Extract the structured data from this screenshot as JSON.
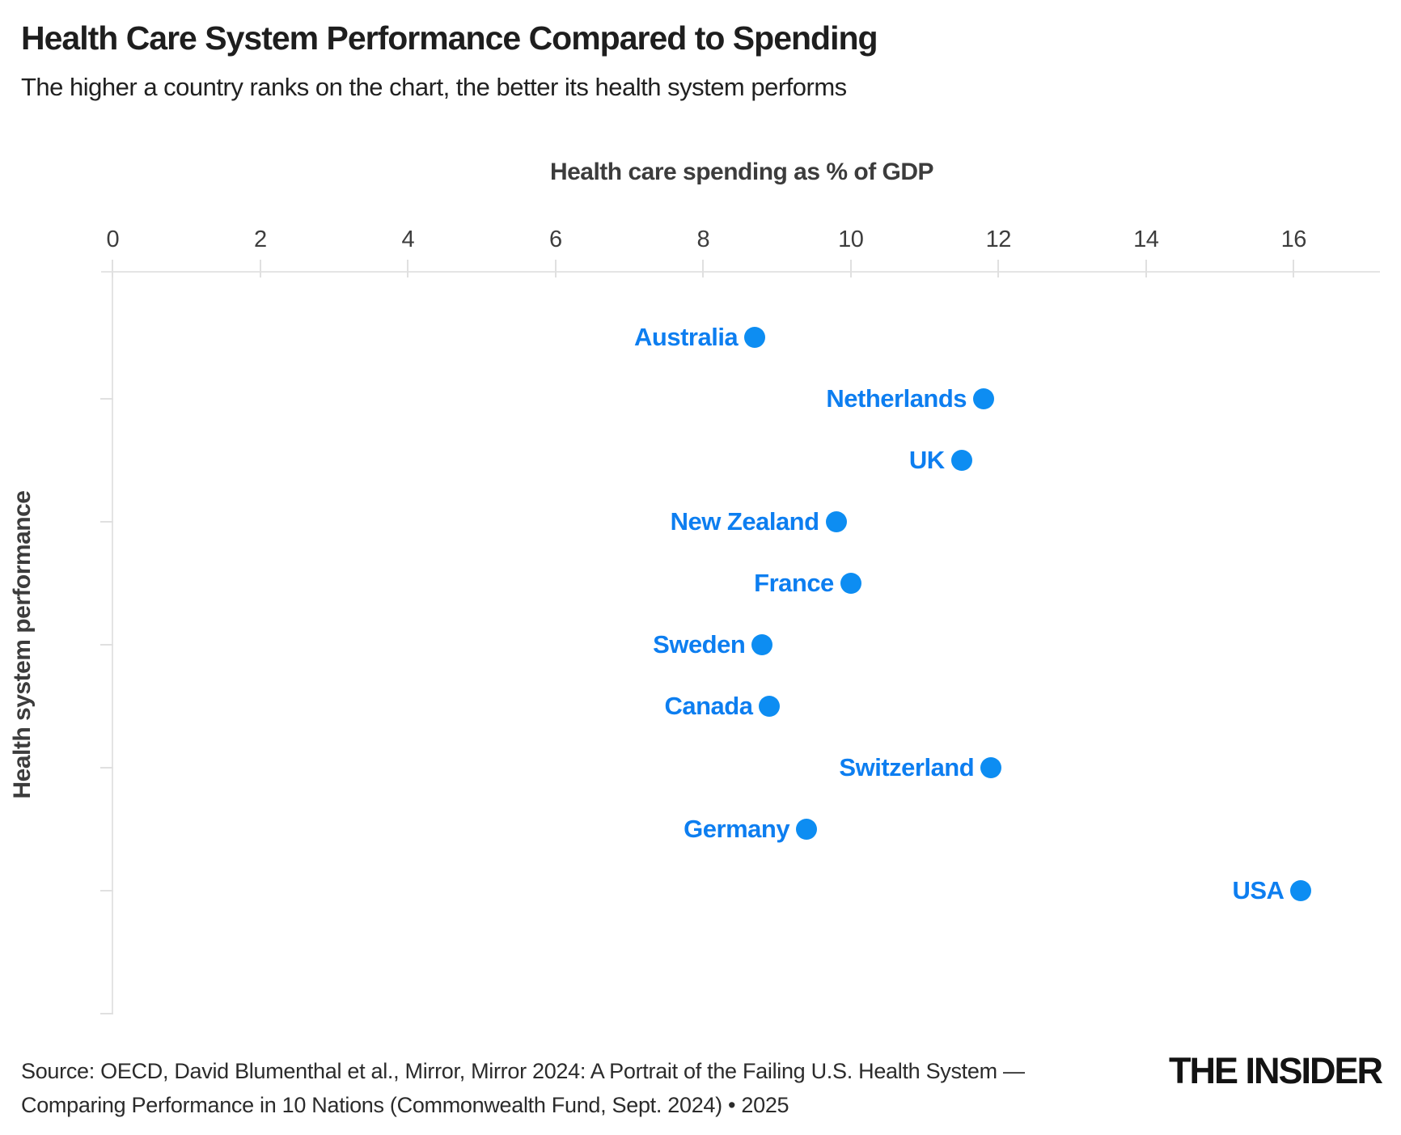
{
  "header": {
    "title": "Health Care System Performance Compared to Spending",
    "subtitle": "The higher a country ranks on the chart, the better its health system performs"
  },
  "chart_data": {
    "type": "scatter",
    "title": "Health Care System Performance Compared to Spending",
    "xlabel": "Health care spending as % of GDP",
    "ylabel": "Health system performance",
    "xlim": [
      0,
      17.2
    ],
    "x_ticks": [
      0,
      2,
      4,
      6,
      8,
      10,
      12,
      14,
      16
    ],
    "ylim_rank": [
      0,
      12
    ],
    "y_tick_ranks": [
      2,
      4,
      6,
      8,
      10,
      12
    ],
    "grid": false,
    "legend": false,
    "point_color": "#0d8df2",
    "label_color": "#0d7ef0",
    "points": [
      {
        "country": "Australia",
        "spending_pct_gdp": 8.7,
        "performance_rank": 1
      },
      {
        "country": "Netherlands",
        "spending_pct_gdp": 11.8,
        "performance_rank": 2
      },
      {
        "country": "UK",
        "spending_pct_gdp": 11.5,
        "performance_rank": 3
      },
      {
        "country": "New Zealand",
        "spending_pct_gdp": 9.8,
        "performance_rank": 4
      },
      {
        "country": "France",
        "spending_pct_gdp": 10.0,
        "performance_rank": 5
      },
      {
        "country": "Sweden",
        "spending_pct_gdp": 8.8,
        "performance_rank": 6
      },
      {
        "country": "Canada",
        "spending_pct_gdp": 8.9,
        "performance_rank": 7
      },
      {
        "country": "Switzerland",
        "spending_pct_gdp": 11.9,
        "performance_rank": 8
      },
      {
        "country": "Germany",
        "spending_pct_gdp": 9.4,
        "performance_rank": 9
      },
      {
        "country": "USA",
        "spending_pct_gdp": 16.1,
        "performance_rank": 10
      }
    ]
  },
  "footer": {
    "source_line1": "Source: OECD, David Blumenthal et al., Mirror, Mirror 2024: A Portrait of the Failing U.S. Health System —",
    "source_line2": "Comparing Performance in 10 Nations (Commonwealth Fund, Sept. 2024) • 2025",
    "logo": "THE INSIDER"
  }
}
